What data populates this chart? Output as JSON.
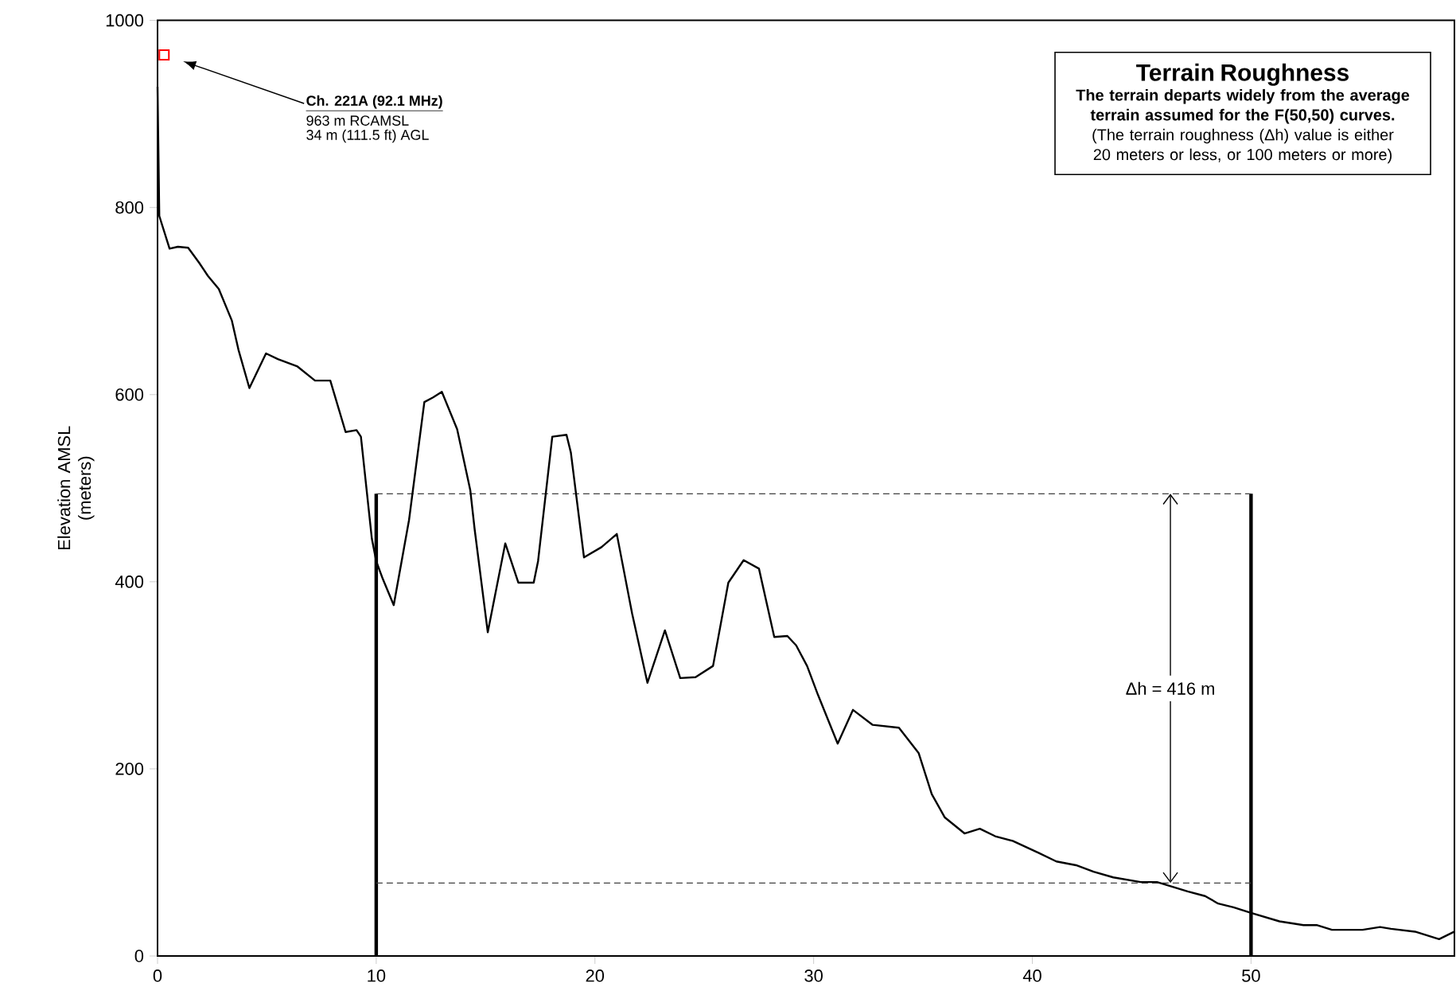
{
  "chart_data": {
    "type": "line",
    "title": "Terrain Roughness",
    "subtitle": "The terrain departs widely from the average terrain assumed for the F(50,50) curves.",
    "ylabel": "Elevation AMSL (meters)",
    "xlim": [
      0,
      59.3
    ],
    "ylim": [
      0,
      1000
    ],
    "xticks": [
      0,
      10,
      20,
      30,
      40,
      50
    ],
    "yticks": [
      0,
      200,
      400,
      600,
      800,
      1000
    ],
    "grid": false,
    "marker": "none",
    "line_style": "solid",
    "series": [
      {
        "color": "#000000",
        "x": [
          0,
          0.08,
          0.55,
          0.93,
          1.4,
          1.9,
          2.3,
          2.8,
          3.4,
          3.7,
          4.2,
          4.96,
          5.5,
          6.4,
          7.2,
          7.9,
          8.6,
          9.1,
          9.3,
          9.8,
          10.0,
          10.3,
          10.8,
          11.5,
          12.2,
          12.6,
          13.0,
          13.7,
          14.3,
          14.5,
          15.1,
          15.9,
          16.5,
          17.2,
          17.4,
          18.05,
          18.7,
          18.9,
          19.5,
          20.3,
          21.0,
          21.7,
          22.4,
          23.2,
          23.9,
          24.6,
          25.4,
          26.1,
          26.8,
          27.5,
          28.2,
          28.8,
          29.2,
          29.7,
          30.2,
          31.1,
          31.8,
          32.7,
          33.9,
          34.8,
          35.4,
          36.0,
          36.9,
          37.6,
          38.3,
          39.1,
          40.3,
          41.1,
          42.0,
          42.8,
          43.7,
          44.95,
          45.7,
          47.1,
          47.9,
          48.5,
          49.2,
          50.0,
          51.3,
          52.4,
          53.0,
          53.7,
          55.1,
          55.9,
          56.4,
          57.5,
          58.6,
          59.3
        ],
        "values": [
          929,
          791,
          756,
          758,
          757,
          741,
          727,
          713,
          679,
          648,
          607,
          644,
          638,
          630,
          615,
          615,
          560,
          562,
          555,
          446,
          422,
          403,
          375,
          466,
          592,
          597,
          603,
          563,
          498,
          456,
          346,
          441,
          399,
          399,
          422,
          555,
          557,
          538,
          426,
          437,
          451,
          366,
          292,
          348,
          297,
          298,
          310,
          399,
          423,
          414,
          341,
          342,
          332,
          310,
          279,
          227,
          263,
          247,
          244,
          217,
          173,
          148,
          131,
          136,
          128,
          123,
          110,
          101,
          97,
          90,
          84,
          79,
          79,
          69,
          64,
          56,
          52,
          46,
          37,
          33,
          33,
          28,
          28,
          31,
          29,
          26,
          18,
          26
        ]
      },
      {
        "type": "scatter",
        "marker": "square",
        "color": "#ff0000",
        "x": [
          0.3
        ],
        "values": [
          963
        ]
      }
    ],
    "ref_lines": [
      {
        "axis": "x",
        "value": 10,
        "line_style": "solid"
      },
      {
        "axis": "x",
        "value": 50,
        "line_style": "solid"
      },
      {
        "axis": "y",
        "value": 494,
        "line_style": "dashed"
      },
      {
        "axis": "y",
        "value": 78,
        "line_style": "dashed"
      }
    ],
    "annotations": [
      "Ch. 221A (92.1 MHz)",
      "963 m RCAMSL",
      "34 m (111.5 ft) AGL",
      "(The terrain roughness (Δh) value is either 20 meters or less, or 100 meters or more)",
      "Δh = 416 m"
    ]
  }
}
